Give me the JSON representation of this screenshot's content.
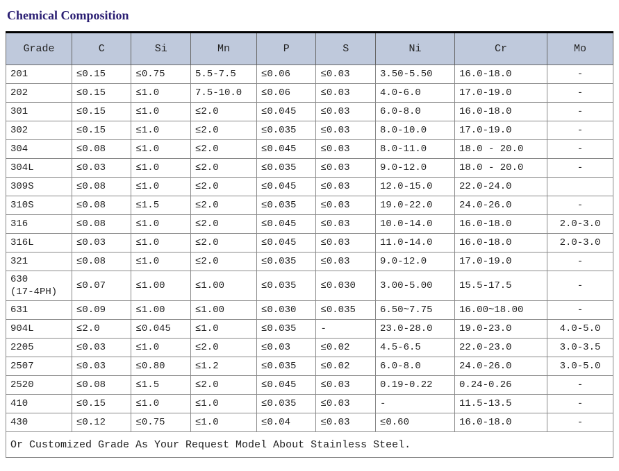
{
  "title": "Chemical Composition",
  "columns": [
    "Grade",
    "C",
    "Si",
    "Mn",
    "P",
    "S",
    "Ni",
    "Cr",
    "Mo"
  ],
  "rows": [
    [
      "201",
      "≤0.15",
      "≤0.75",
      "5.5-7.5",
      "≤0.06",
      "≤0.03",
      "3.50-5.50",
      "16.0-18.0",
      "-"
    ],
    [
      "202",
      "≤0.15",
      "≤1.0",
      "7.5-10.0",
      "≤0.06",
      "≤0.03",
      "4.0-6.0",
      "17.0-19.0",
      "-"
    ],
    [
      "301",
      "≤0.15",
      "≤1.0",
      "≤2.0",
      "≤0.045",
      "≤0.03",
      "6.0-8.0",
      "16.0-18.0",
      "-"
    ],
    [
      "302",
      "≤0.15",
      "≤1.0",
      "≤2.0",
      "≤0.035",
      "≤0.03",
      "8.0-10.0",
      "17.0-19.0",
      "-"
    ],
    [
      "304",
      "≤0.08",
      "≤1.0",
      "≤2.0",
      "≤0.045",
      "≤0.03",
      "8.0-11.0",
      "18.0 - 20.0",
      "-"
    ],
    [
      "304L",
      "≤0.03",
      "≤1.0",
      "≤2.0",
      "≤0.035",
      "≤0.03",
      "9.0-12.0",
      "18.0 - 20.0",
      "-"
    ],
    [
      "309S",
      "≤0.08",
      "≤1.0",
      "≤2.0",
      "≤0.045",
      "≤0.03",
      "12.0-15.0",
      "22.0-24.0",
      ""
    ],
    [
      "310S",
      "≤0.08",
      "≤1.5",
      "≤2.0",
      "≤0.035",
      "≤0.03",
      "19.0-22.0",
      "24.0-26.0",
      "-"
    ],
    [
      "316",
      "≤0.08",
      "≤1.0",
      "≤2.0",
      "≤0.045",
      "≤0.03",
      "10.0-14.0",
      "16.0-18.0",
      "2.0-3.0"
    ],
    [
      "316L",
      "≤0.03",
      "≤1.0",
      "≤2.0",
      "≤0.045",
      "≤0.03",
      "11.0-14.0",
      "16.0-18.0",
      "2.0-3.0"
    ],
    [
      "321",
      "≤0.08",
      "≤1.0",
      "≤2.0",
      "≤0.035",
      "≤0.03",
      "9.0-12.0",
      "17.0-19.0",
      "-"
    ],
    [
      "630\n(17-4PH)",
      "≤0.07",
      "≤1.00",
      "≤1.00",
      "≤0.035",
      "≤0.030",
      "3.00-5.00",
      "15.5-17.5",
      "-"
    ],
    [
      "631",
      "≤0.09",
      "≤1.00",
      "≤1.00",
      "≤0.030",
      "≤0.035",
      "6.50~7.75",
      "16.00~18.00",
      "-"
    ],
    [
      "904L",
      "≤2.0",
      "≤0.045",
      "≤1.0",
      "≤0.035",
      "-",
      "23.0-28.0",
      "19.0-23.0",
      "4.0-5.0"
    ],
    [
      "2205",
      "≤0.03",
      "≤1.0",
      "≤2.0",
      "≤0.03",
      "≤0.02",
      "4.5-6.5",
      "22.0-23.0",
      "3.0-3.5"
    ],
    [
      "2507",
      "≤0.03",
      "≤0.80",
      "≤1.2",
      "≤0.035",
      "≤0.02",
      "6.0-8.0",
      "24.0-26.0",
      "3.0-5.0"
    ],
    [
      "2520",
      "≤0.08",
      "≤1.5",
      "≤2.0",
      "≤0.045",
      "≤0.03",
      "0.19-0.22",
      "0.24-0.26",
      "-"
    ],
    [
      "410",
      "≤0.15",
      "≤1.0",
      "≤1.0",
      "≤0.035",
      "≤0.03",
      "-",
      "11.5-13.5",
      "-"
    ],
    [
      "430",
      "≤0.12",
      "≤0.75",
      "≤1.0",
      "≤0.04",
      "≤0.03",
      "≤0.60",
      "16.0-18.0",
      "-"
    ]
  ],
  "footer": "Or Customized Grade As Your Request Model About Stainless Steel.",
  "style": {
    "title_color": "#2b1f73",
    "title_fontsize": 18,
    "header_bg": "#bfc9dc",
    "border_color": "#666666",
    "cell_border_color": "#888888",
    "text_color": "#222222",
    "font_family": "SimSun / Courier",
    "cell_fontsize": 14,
    "header_fontsize": 15,
    "top_border_width": 3,
    "mo_col_align": "center",
    "col_widths_pct": [
      10,
      9,
      9,
      10,
      9,
      9,
      12,
      14,
      10
    ]
  }
}
